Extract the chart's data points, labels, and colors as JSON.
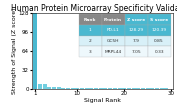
{
  "title": "Human Protein Microarray Specificity Validation",
  "xlabel": "Signal Rank",
  "ylabel": "Strength of Signal (Z score)",
  "xlim": [
    1,
    30
  ],
  "ylim": [
    0,
    128
  ],
  "yticks": [
    0,
    32,
    64,
    96,
    128
  ],
  "xticks": [
    1,
    10,
    20,
    30
  ],
  "bar_color": "#72cfe0",
  "highlight_color": "#4ab8d0",
  "background_color": "#ffffff",
  "signal_ranks": [
    1,
    2,
    3,
    4,
    5,
    6,
    7,
    8,
    9,
    10,
    11,
    12,
    13,
    14,
    15,
    16,
    17,
    18,
    19,
    20,
    21,
    22,
    23,
    24,
    25,
    26,
    27,
    28,
    29,
    30
  ],
  "signal_values": [
    128.29,
    7.9,
    7.05,
    2.5,
    2.0,
    1.8,
    1.6,
    1.5,
    1.4,
    1.3,
    1.2,
    1.1,
    1.0,
    0.9,
    0.85,
    0.8,
    0.75,
    0.7,
    0.65,
    0.6,
    0.55,
    0.5,
    0.45,
    0.4,
    0.35,
    0.3,
    0.25,
    0.2,
    0.15,
    0.1
  ],
  "table_headers": [
    "Rank",
    "Protein",
    "Z score",
    "S score"
  ],
  "table_rows": [
    [
      "1",
      "PD-L1",
      "128.29",
      "120.39"
    ],
    [
      "2",
      "GC5H",
      "7.9",
      "0.85"
    ],
    [
      "3",
      "MRPL44",
      "7.05",
      "0.33"
    ]
  ],
  "header_gray_color": "#888888",
  "header_blue_color": "#4ab8d0",
  "row1_color": "#4ab8d0",
  "row2_color": "#d8f0f8",
  "row3_color": "#eef8fc",
  "title_fontsize": 5.5,
  "axis_fontsize": 4.5,
  "tick_fontsize": 4.0,
  "table_fontsize": 3.2
}
